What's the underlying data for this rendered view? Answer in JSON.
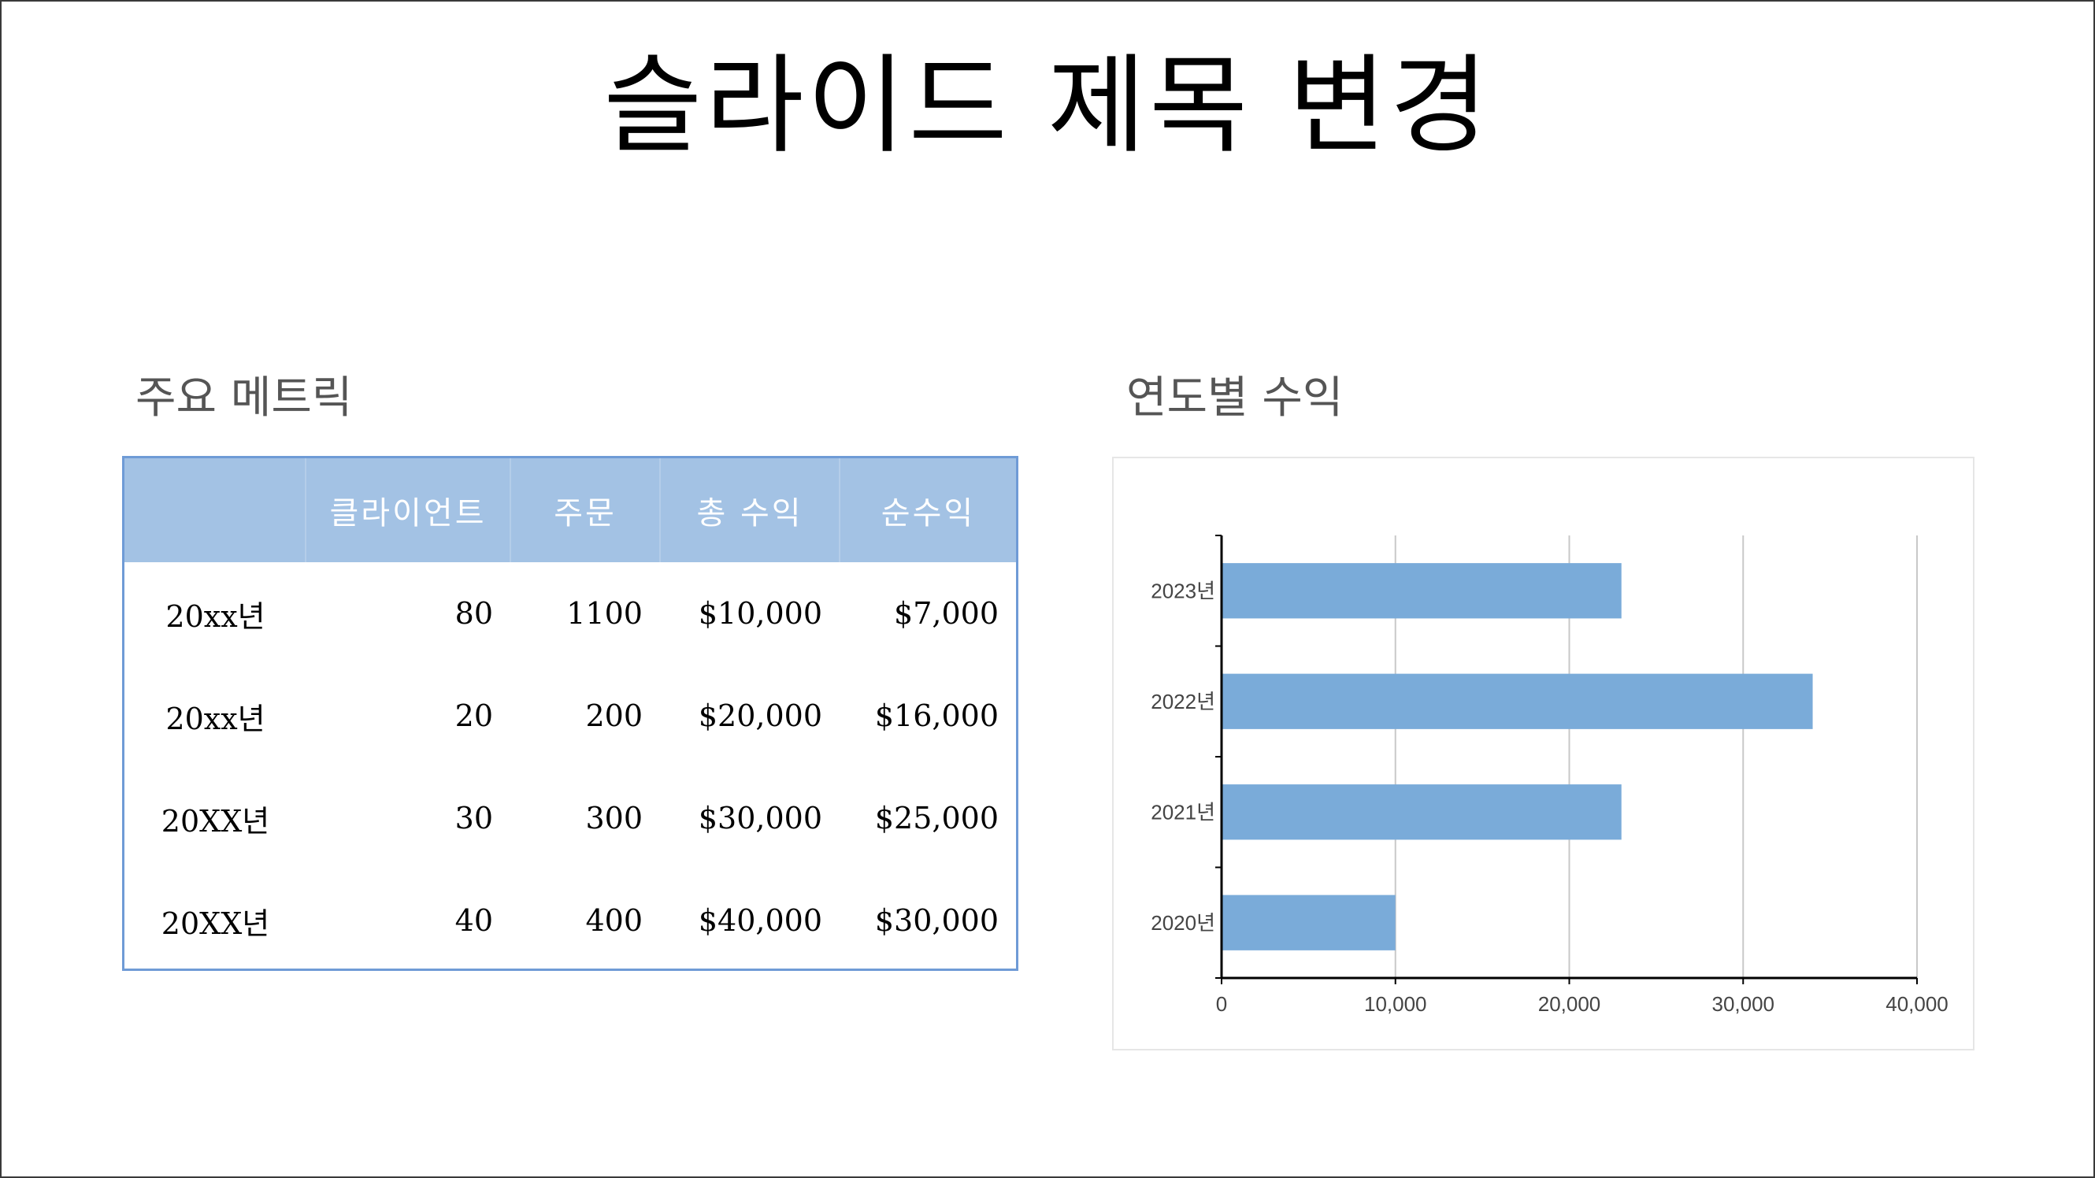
{
  "slide": {
    "title": "슬라이드 제목 변경"
  },
  "metrics": {
    "heading": "주요 메트릭",
    "columns": [
      "",
      "클라이언트",
      "주문",
      "총 수익",
      "순수익"
    ],
    "rows": [
      [
        "20xx년",
        "80",
        "1100",
        "$10,000",
        "$7,000"
      ],
      [
        "20xx년",
        "20",
        "200",
        "$20,000",
        "$16,000"
      ],
      [
        "20XX년",
        "30",
        "300",
        "$30,000",
        "$25,000"
      ],
      [
        "20XX년",
        "40",
        "400",
        "$40,000",
        "$30,000"
      ]
    ]
  },
  "revenue": {
    "heading": "연도별 수익"
  },
  "chart_data": {
    "type": "bar",
    "orientation": "horizontal",
    "categories": [
      "2023년",
      "2022년",
      "2021년",
      "2020년"
    ],
    "values": [
      23000,
      34000,
      23000,
      10000
    ],
    "xlim": [
      0,
      40000
    ],
    "xticks": [
      "0",
      "10,000",
      "20,000",
      "30,000",
      "40,000"
    ],
    "grid": true,
    "bar_color": "#7aabd9"
  },
  "colors": {
    "table_header": "#a3c2e4",
    "table_border": "#6f9bd6",
    "bar": "#7aabd9"
  }
}
